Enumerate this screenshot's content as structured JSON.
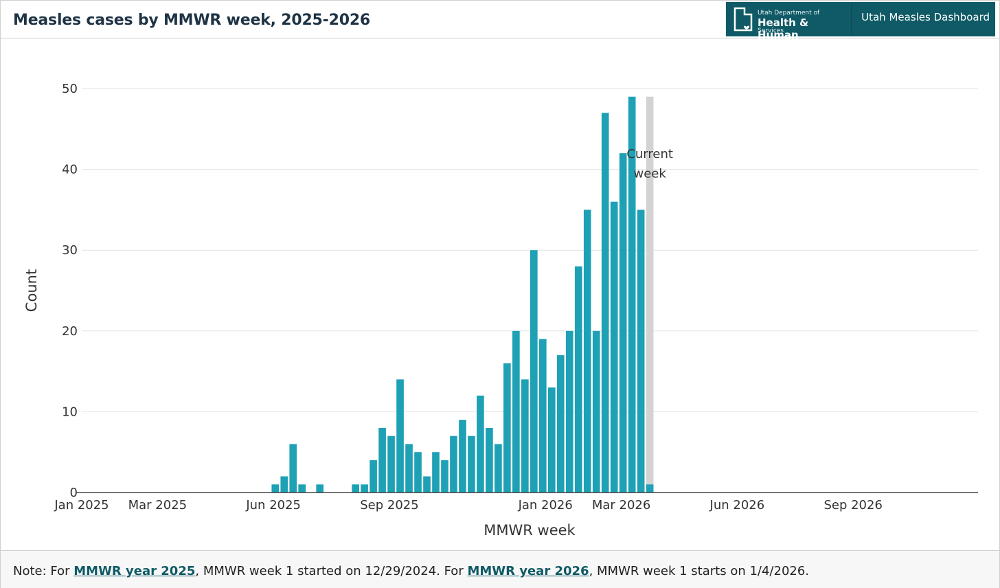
{
  "header": {
    "title": "Measles cases by MMWR week, 2025-2026",
    "brand_small": "Utah Department of",
    "brand_big": "Health & Human",
    "brand_sub": "Services",
    "dashboard_label": "Utah Measles Dashboard"
  },
  "footer": {
    "prefix": "Note: For ",
    "link1": "MMWR year 2025",
    "middle": ", MMWR week 1 started on 12/29/2024. For ",
    "link2": "MMWR year 2026",
    "suffix": ", MMWR week 1 starts on 1/4/2026."
  },
  "colors": {
    "bar": "#1ea1b5",
    "current_band": "#d3d3d3",
    "brand": "#0f5a66",
    "title": "#1f3345"
  },
  "chart_data": {
    "type": "bar",
    "xlabel": "MMWR week",
    "ylabel": "Count",
    "ylim": [
      0,
      53
    ],
    "yticks": [
      0,
      10,
      20,
      30,
      40,
      50
    ],
    "grid": true,
    "x_ticks": [
      {
        "label": "Jan 2025",
        "week_index": 0
      },
      {
        "label": "Mar 2025",
        "week_index": 8.5
      },
      {
        "label": "Jun 2025",
        "week_index": 21.5
      },
      {
        "label": "Sep 2025",
        "week_index": 34.5
      },
      {
        "label": "Jan 2026",
        "week_index": 52
      },
      {
        "label": "Mar 2026",
        "week_index": 60.5
      },
      {
        "label": "Jun 2026",
        "week_index": 73.5
      },
      {
        "label": "Sep 2026",
        "week_index": 86.5
      }
    ],
    "x_range_weeks": [
      0,
      100
    ],
    "weeks": [
      {
        "start": "2025-05-25",
        "value": 1
      },
      {
        "start": "2025-06-01",
        "value": 2
      },
      {
        "start": "2025-06-08",
        "value": 6
      },
      {
        "start": "2025-06-15",
        "value": 1
      },
      {
        "start": "2025-06-22",
        "value": 0
      },
      {
        "start": "2025-06-29",
        "value": 1
      },
      {
        "start": "2025-07-06",
        "value": 0
      },
      {
        "start": "2025-07-13",
        "value": 0
      },
      {
        "start": "2025-07-20",
        "value": 0
      },
      {
        "start": "2025-07-27",
        "value": 1
      },
      {
        "start": "2025-08-03",
        "value": 1
      },
      {
        "start": "2025-08-10",
        "value": 4
      },
      {
        "start": "2025-08-17",
        "value": 8
      },
      {
        "start": "2025-08-24",
        "value": 7
      },
      {
        "start": "2025-08-31",
        "value": 14
      },
      {
        "start": "2025-09-07",
        "value": 6
      },
      {
        "start": "2025-09-14",
        "value": 5
      },
      {
        "start": "2025-09-21",
        "value": 2
      },
      {
        "start": "2025-09-28",
        "value": 5
      },
      {
        "start": "2025-10-05",
        "value": 4
      },
      {
        "start": "2025-10-12",
        "value": 7
      },
      {
        "start": "2025-10-19",
        "value": 9
      },
      {
        "start": "2025-10-26",
        "value": 7
      },
      {
        "start": "2025-11-02",
        "value": 12
      },
      {
        "start": "2025-11-09",
        "value": 8
      },
      {
        "start": "2025-11-16",
        "value": 6
      },
      {
        "start": "2025-11-23",
        "value": 16
      },
      {
        "start": "2025-11-30",
        "value": 20
      },
      {
        "start": "2025-12-07",
        "value": 14
      },
      {
        "start": "2025-12-14",
        "value": 30
      },
      {
        "start": "2025-12-21",
        "value": 19
      },
      {
        "start": "2025-12-28",
        "value": 13
      },
      {
        "start": "2026-01-04",
        "value": 17
      },
      {
        "start": "2026-01-11",
        "value": 20
      },
      {
        "start": "2026-01-18",
        "value": 28
      },
      {
        "start": "2026-01-25",
        "value": 35
      },
      {
        "start": "2026-02-01",
        "value": 20
      },
      {
        "start": "2026-02-08",
        "value": 47
      },
      {
        "start": "2026-02-15",
        "value": 36
      },
      {
        "start": "2026-02-22",
        "value": 42
      },
      {
        "start": "2026-03-01",
        "value": 49
      },
      {
        "start": "2026-03-08",
        "value": 35
      },
      {
        "start": "2026-03-15",
        "value": 1
      }
    ],
    "first_bar_week_index": 21.7,
    "current_week_index": 63.7,
    "current_week_value": 49,
    "annotation": {
      "line1": "Current",
      "line2": "week"
    }
  }
}
